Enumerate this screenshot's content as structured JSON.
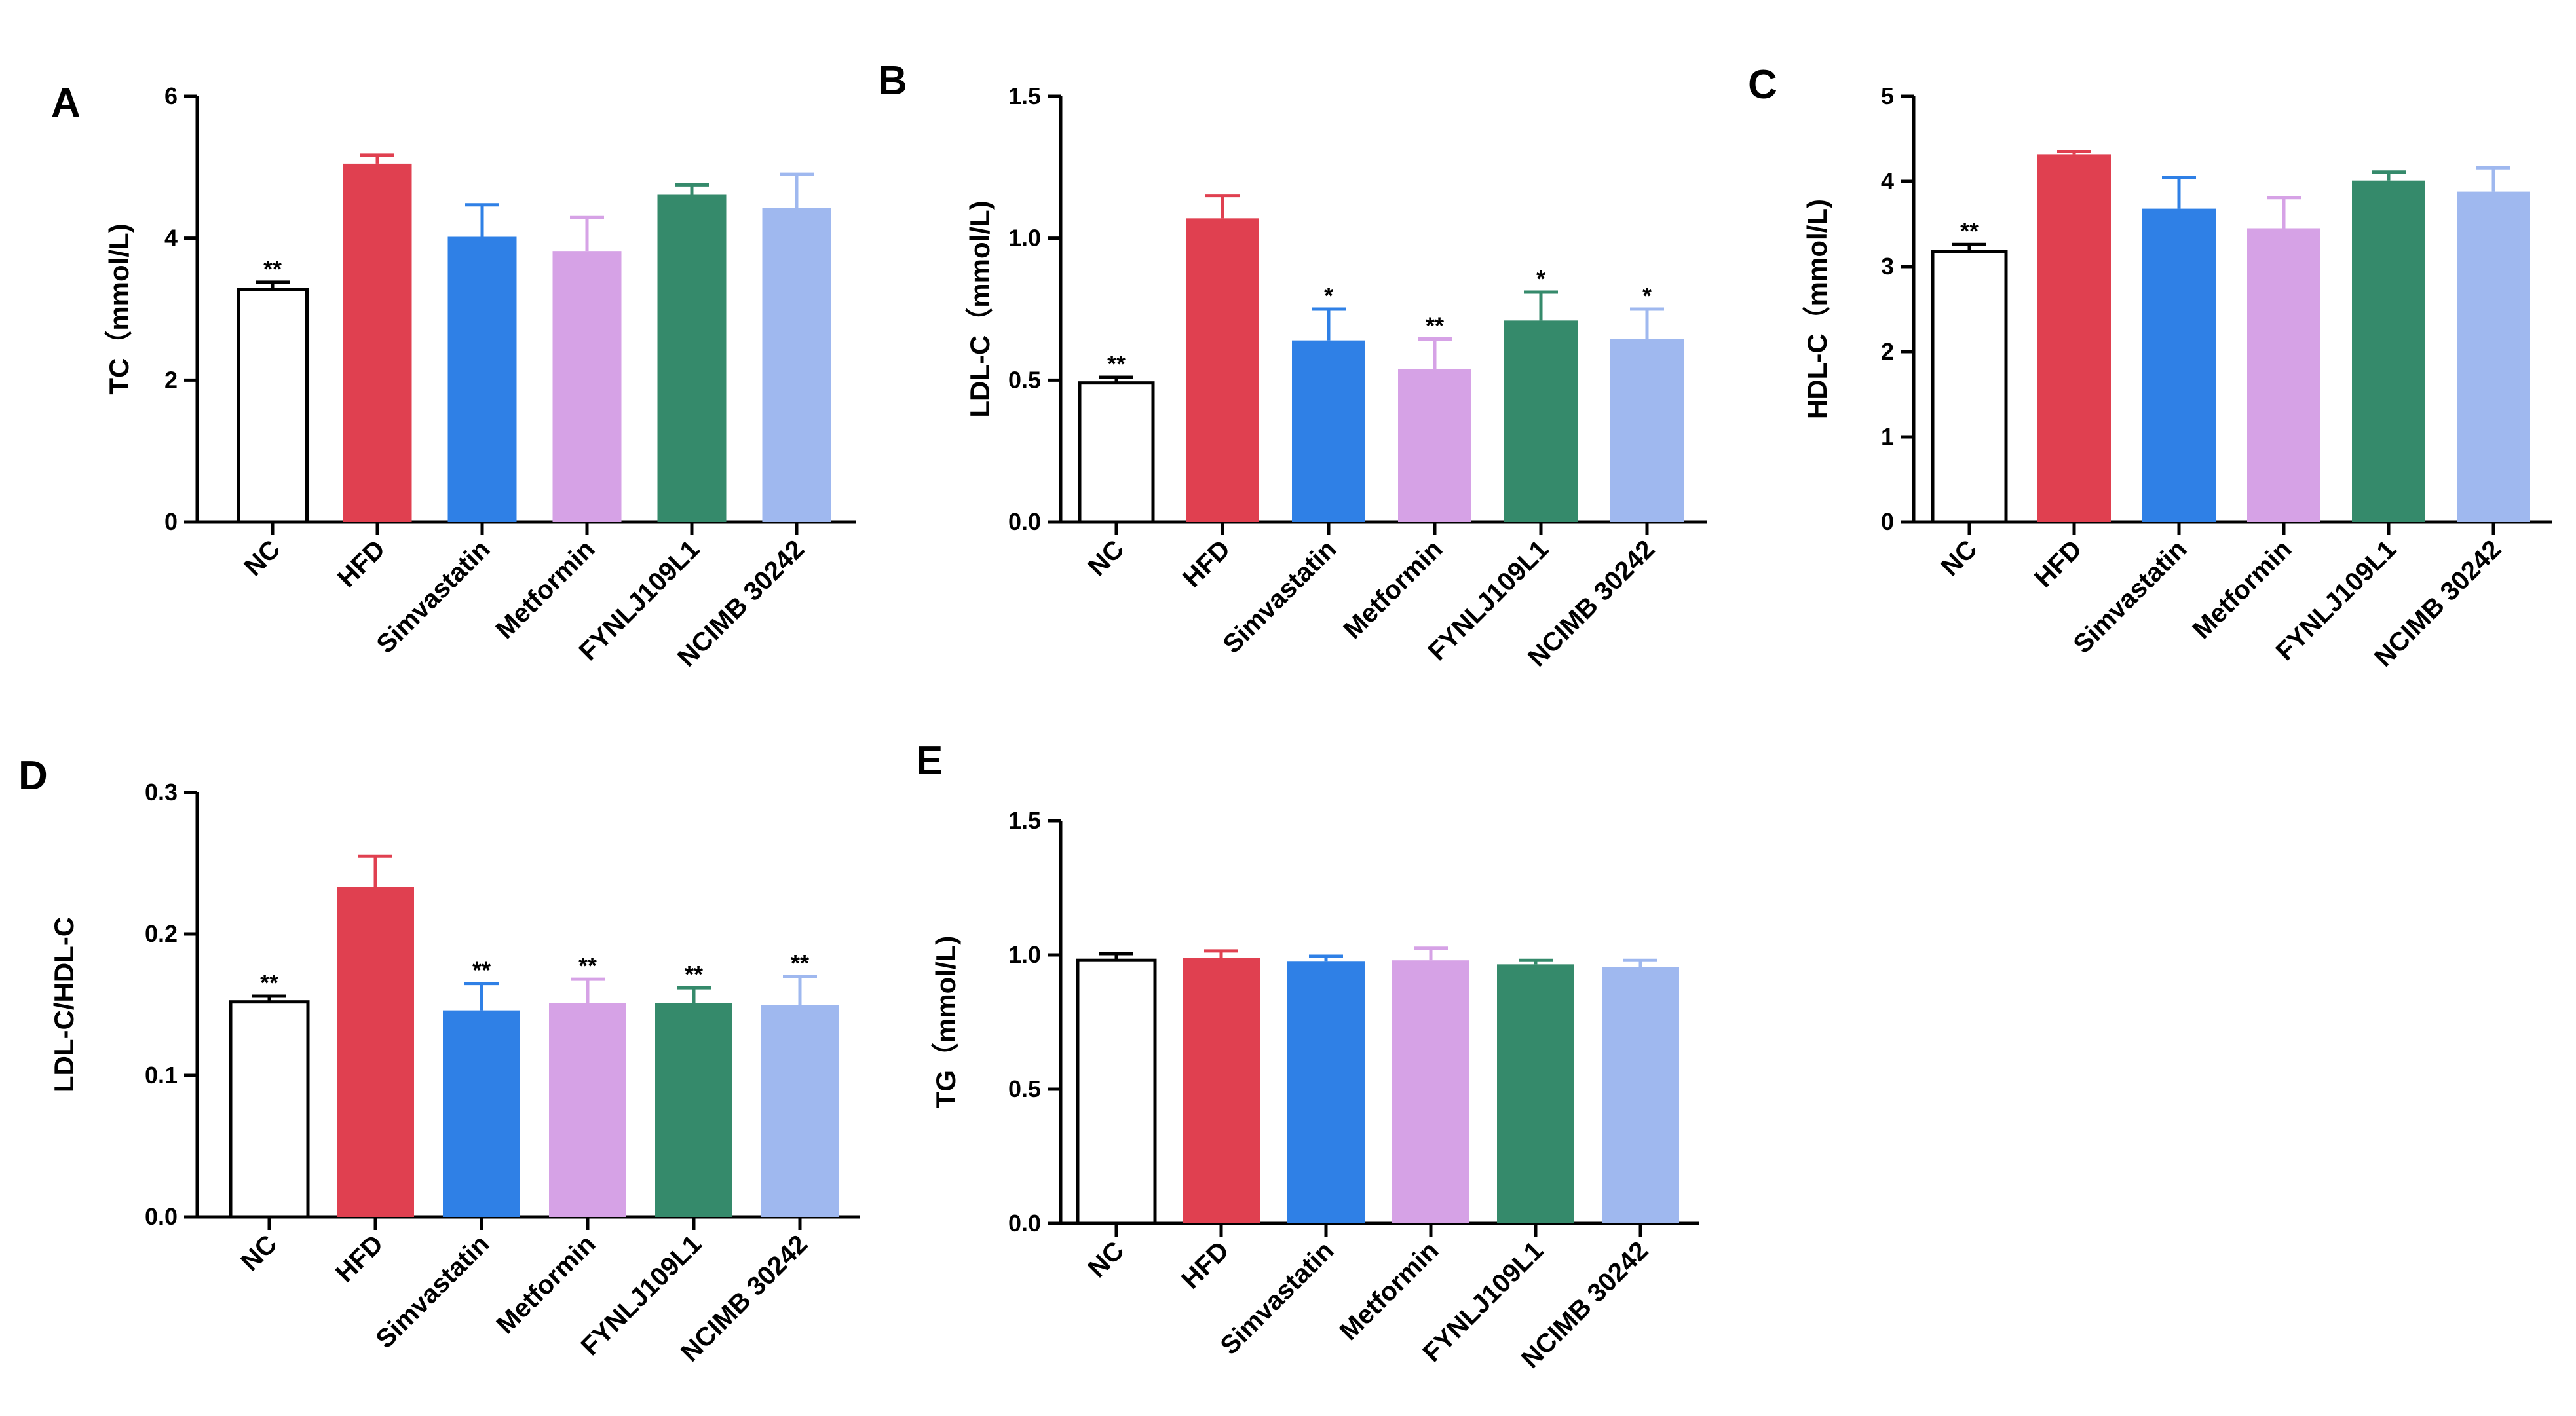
{
  "colors": {
    "NC": "#ffffff",
    "HFD": "#e04050",
    "Simvastatin": "#2f80e6",
    "Metformin": "#d6a2e6",
    "FYNLJ109L1": "#358a6b",
    "NCIMB 30242": "#9fb8ef",
    "axis": "#000000"
  },
  "chart_data": [
    {
      "panel": "A",
      "type": "bar",
      "ylabel": "TC（mmol/L)",
      "ylim": [
        0,
        6
      ],
      "yticks": [
        0,
        2,
        4,
        6
      ],
      "ytick_labels": [
        "0",
        "2",
        "4",
        "6"
      ],
      "categories": [
        "NC",
        "HFD",
        "Simvastatin",
        "Metformin",
        "FYNLJ109L1",
        "NCIMB 30242"
      ],
      "values": [
        3.28,
        5.05,
        4.02,
        3.82,
        4.62,
        4.43
      ],
      "errors": [
        0.1,
        0.12,
        0.45,
        0.47,
        0.13,
        0.47
      ],
      "significance": [
        "**",
        "",
        "",
        "",
        "",
        ""
      ]
    },
    {
      "panel": "B",
      "type": "bar",
      "ylabel": "LDL-C（mmol/L)",
      "ylim": [
        0,
        1.5
      ],
      "yticks": [
        0,
        0.5,
        1,
        1.5
      ],
      "ytick_labels": [
        "0.0",
        "0.5",
        "1.0",
        "1.5"
      ],
      "categories": [
        "NC",
        "HFD",
        "Simvastatin",
        "Metformin",
        "FYNLJ109L1",
        "NCIMB 30242"
      ],
      "values": [
        0.49,
        1.07,
        0.64,
        0.54,
        0.71,
        0.645
      ],
      "errors": [
        0.02,
        0.08,
        0.11,
        0.105,
        0.1,
        0.105
      ],
      "significance": [
        "**",
        "",
        "*",
        "**",
        "*",
        "*"
      ]
    },
    {
      "panel": "C",
      "type": "bar",
      "ylabel": "HDL-C（mmol/L)",
      "ylim": [
        0,
        5
      ],
      "yticks": [
        0,
        1,
        2,
        3,
        4,
        5
      ],
      "ytick_labels": [
        "0",
        "1",
        "2",
        "3",
        "4",
        "5"
      ],
      "categories": [
        "NC",
        "HFD",
        "Simvastatin",
        "Metformin",
        "FYNLJ109L1",
        "NCIMB 30242"
      ],
      "values": [
        3.18,
        4.32,
        3.68,
        3.45,
        4.01,
        3.88
      ],
      "errors": [
        0.08,
        0.03,
        0.37,
        0.36,
        0.1,
        0.28
      ],
      "significance": [
        "**",
        "",
        "",
        "",
        "",
        ""
      ]
    },
    {
      "panel": "D",
      "type": "bar",
      "ylabel": "LDL-C/HDL-C",
      "ylim": [
        0,
        0.3
      ],
      "yticks": [
        0,
        0.1,
        0.2,
        0.3
      ],
      "ytick_labels": [
        "0.0",
        "0.1",
        "0.2",
        "0.3"
      ],
      "categories": [
        "NC",
        "HFD",
        "Simvastatin",
        "Metformin",
        "FYNLJ109L1",
        "NCIMB 30242"
      ],
      "values": [
        0.152,
        0.233,
        0.146,
        0.151,
        0.151,
        0.15
      ],
      "errors": [
        0.004,
        0.022,
        0.019,
        0.017,
        0.011,
        0.02
      ],
      "significance": [
        "**",
        "",
        "**",
        "**",
        "**",
        "**"
      ]
    },
    {
      "panel": "E",
      "type": "bar",
      "ylabel": "TG（mmol/L)",
      "ylim": [
        0,
        1.5
      ],
      "yticks": [
        0,
        0.5,
        1,
        1.5
      ],
      "ytick_labels": [
        "0.0",
        "0.5",
        "1.0",
        "1.5"
      ],
      "categories": [
        "NC",
        "HFD",
        "Simvastatin",
        "Metformin",
        "FYNLJ109L1",
        "NCIMB 30242"
      ],
      "values": [
        0.98,
        0.99,
        0.975,
        0.98,
        0.965,
        0.955
      ],
      "errors": [
        0.025,
        0.025,
        0.02,
        0.045,
        0.015,
        0.025
      ],
      "significance": [
        "",
        "",
        "",
        "",
        "",
        ""
      ]
    }
  ]
}
